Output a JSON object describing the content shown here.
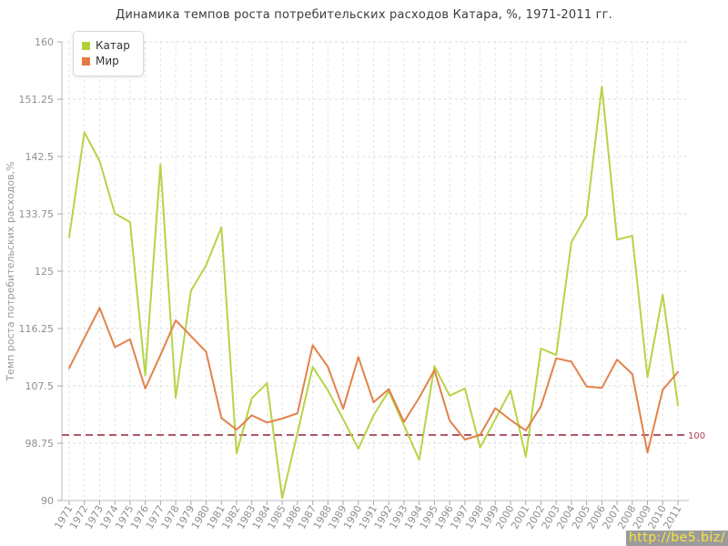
{
  "title": "Динамика темпов роста потребительских расходов Катара, %, 1971-2011 гг.",
  "watermark": "http://be5.biz/",
  "colors": {
    "qatar_line": "#b2d23c",
    "world_line": "#e27b40",
    "reference_line": "#b25868",
    "reference_label": "#b04050",
    "grid": "#dedede",
    "axis": "#bdbdbd",
    "tick_text": "#8f8f8f",
    "title_text": "#3c3c3c",
    "watermark_bg": "#9b9b9b",
    "watermark_text": "#f8e43c"
  },
  "chart_data": {
    "type": "line",
    "title": "Динамика темпов роста потребительских расходов Катара, %, 1971-2011 гг.",
    "xlabel": "",
    "ylabel": "Темп роста потребительских расходов,%",
    "x": [
      1971,
      1972,
      1973,
      1974,
      1975,
      1976,
      1977,
      1978,
      1979,
      1980,
      1981,
      1982,
      1983,
      1984,
      1985,
      1986,
      1987,
      1988,
      1989,
      1990,
      1991,
      1992,
      1993,
      1994,
      1995,
      1996,
      1997,
      1998,
      1999,
      2000,
      2001,
      2002,
      2003,
      2004,
      2005,
      2006,
      2007,
      2008,
      2009,
      2010,
      2011
    ],
    "series": [
      {
        "name": "Катар",
        "color": "#b2d23c",
        "values": [
          130.2,
          146.2,
          141.8,
          133.8,
          132.5,
          109.1,
          141.3,
          105.7,
          122.0,
          125.9,
          131.7,
          97.2,
          105.6,
          107.9,
          90.4,
          100.3,
          110.4,
          106.8,
          102.4,
          97.9,
          103.0,
          106.7,
          101.5,
          96.2,
          110.5,
          106.0,
          107.1,
          98.1,
          102.4,
          106.8,
          96.7,
          113.2,
          112.2,
          129.4,
          133.5,
          153.2,
          129.8,
          130.4,
          108.8,
          121.4,
          104.5
        ]
      },
      {
        "name": "Мир",
        "color": "#e27b40",
        "values": [
          110.2,
          114.8,
          119.4,
          113.4,
          114.6,
          107.1,
          112.2,
          117.5,
          115.1,
          112.7,
          102.6,
          100.8,
          103.0,
          101.9,
          102.5,
          103.3,
          113.7,
          110.4,
          104.0,
          111.9,
          105.0,
          107.0,
          102.0,
          105.7,
          109.9,
          102.2,
          99.3,
          100.0,
          104.1,
          102.3,
          100.7,
          104.4,
          111.7,
          111.2,
          107.4,
          107.2,
          111.5,
          109.3,
          97.3,
          106.9,
          109.6
        ]
      }
    ],
    "ylim": [
      90,
      160
    ],
    "yticks": [
      90,
      98.75,
      107.5,
      116.25,
      125,
      133.75,
      142.5,
      151.25,
      160
    ],
    "grid": true,
    "legend_position": "top-left",
    "reference_line": {
      "value": 100,
      "label": "100",
      "style": "dashed",
      "color": "#b25868"
    }
  }
}
